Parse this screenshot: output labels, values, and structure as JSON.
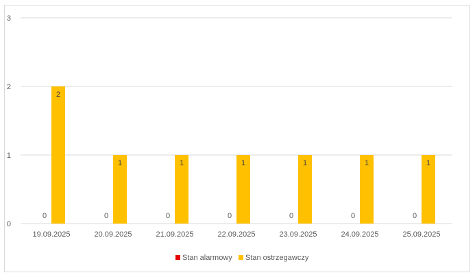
{
  "chart_data": {
    "type": "bar",
    "categories": [
      "19.09.2025",
      "20.09.2025",
      "21.09.2025",
      "22.09.2025",
      "23.09.2025",
      "24.09.2025",
      "25.09.2025"
    ],
    "series": [
      {
        "name": "Stan alarmowy",
        "values": [
          0,
          0,
          0,
          0,
          0,
          0,
          0
        ]
      },
      {
        "name": "Stan ostrzegawczy",
        "values": [
          2,
          1,
          1,
          1,
          1,
          1,
          1
        ]
      }
    ],
    "yticks": [
      "0",
      "1",
      "2",
      "3"
    ],
    "ylim": [
      0,
      3
    ],
    "grid": true,
    "legend_position": "bottom",
    "data_labels": true
  },
  "colors": {
    "Stan alarmowy": "#e60000",
    "Stan ostrzegawczy": "#ffc000",
    "grid": "#d9d9d9",
    "axis": "#d9d9d9",
    "text": "#595959",
    "label_on_bar": "#404040"
  }
}
